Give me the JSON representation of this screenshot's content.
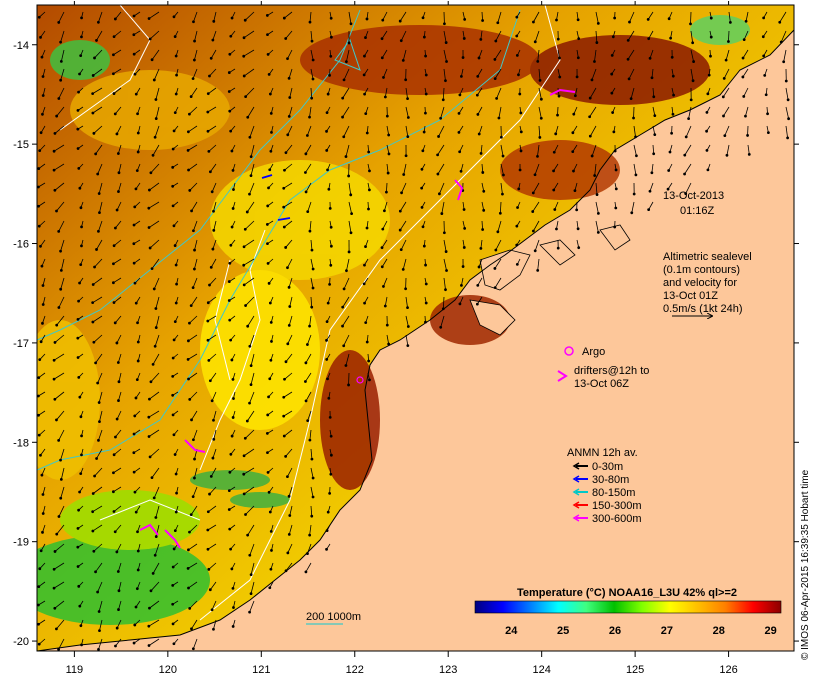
{
  "map": {
    "lon_range": [
      118.6,
      126.7
    ],
    "lat_range": [
      -20.1,
      -13.6
    ],
    "lon_ticks": [
      "119",
      "120",
      "121",
      "122",
      "123",
      "124",
      "125",
      "126"
    ],
    "lat_ticks": [
      "-14",
      "-15",
      "-16",
      "-17",
      "-18",
      "-19",
      "-20"
    ],
    "land_color": "#fdc79a"
  },
  "annotations": {
    "date": "13-Oct-2013",
    "time": "01:16Z",
    "altimetry_lines": [
      "Altimetric sealevel",
      "(0.1m contours)",
      "and velocity for",
      "13-Oct 01Z",
      "0.5m/s (1kt 24h)"
    ],
    "argo_label": "Argo",
    "drifter_lines": [
      "drifters@12h to",
      "13-Oct 06Z"
    ],
    "anmn_title": "ANMN 12h av.",
    "anmn_items": [
      {
        "label": "0-30m",
        "color": "#000000"
      },
      {
        "label": "30-80m",
        "color": "#0000ff"
      },
      {
        "label": "80-150m",
        "color": "#00c8c8"
      },
      {
        "label": "150-300m",
        "color": "#ff0000"
      },
      {
        "label": "300-600m",
        "color": "#ff00ff"
      }
    ],
    "isobath_label": "200  1000m"
  },
  "colorbar": {
    "title": "Temperature (°C) NOAA16_L3U 42% ql>=2",
    "ticks": [
      "24",
      "25",
      "26",
      "27",
      "28",
      "29"
    ],
    "range": [
      23.3,
      29.2
    ],
    "colors": [
      "#00007f",
      "#0000ff",
      "#007fff",
      "#00ffff",
      "#40ff80",
      "#00c000",
      "#80ff00",
      "#ffff00",
      "#ffc000",
      "#ff7f00",
      "#ff0000",
      "#8b0000"
    ]
  },
  "credit": "© IMOS 06-Apr-2015 16:39:35 Hobart time"
}
